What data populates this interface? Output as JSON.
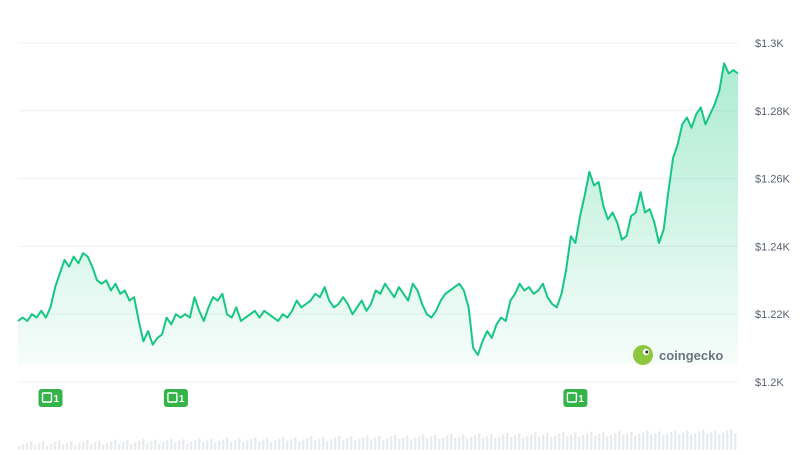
{
  "chart_data": {
    "type": "area",
    "ylim": [
      1200,
      1305
    ],
    "y_ticks": [
      {
        "value": 1300,
        "label": "$1.3K"
      },
      {
        "value": 1280,
        "label": "$1.28K"
      },
      {
        "value": 1260,
        "label": "$1.26K"
      },
      {
        "value": 1240,
        "label": "$1.24K"
      },
      {
        "value": 1220,
        "label": "$1.22K"
      },
      {
        "value": 1200,
        "label": "$1.2K"
      }
    ],
    "grid": true,
    "line_color": "#16c784",
    "fill_color": "#16c784",
    "badge_color": "#34b349",
    "series": [
      {
        "values": [
          1218,
          1219,
          1218,
          1220,
          1219,
          1221,
          1219,
          1222,
          1228,
          1232,
          1236,
          1234,
          1237,
          1235,
          1238,
          1237,
          1234,
          1230,
          1229,
          1230,
          1227,
          1229,
          1226,
          1227,
          1224,
          1225,
          1218,
          1212,
          1215,
          1211,
          1213,
          1214,
          1219,
          1217,
          1220,
          1219,
          1220,
          1219,
          1225,
          1221,
          1218,
          1222,
          1225,
          1224,
          1226,
          1220,
          1219,
          1222,
          1218,
          1219,
          1220,
          1221,
          1219,
          1221,
          1220,
          1219,
          1218,
          1220,
          1219,
          1221,
          1224,
          1222,
          1223,
          1224,
          1226,
          1225,
          1228,
          1224,
          1222,
          1223,
          1225,
          1223,
          1220,
          1222,
          1224,
          1221,
          1223,
          1227,
          1226,
          1229,
          1227,
          1225,
          1228,
          1226,
          1224,
          1229,
          1227,
          1223,
          1220,
          1219,
          1221,
          1224,
          1226,
          1227,
          1228,
          1229,
          1227,
          1222,
          1210,
          1208,
          1212,
          1215,
          1213,
          1217,
          1219,
          1218,
          1224,
          1226,
          1229,
          1227,
          1228,
          1226,
          1227,
          1229,
          1225,
          1223,
          1222,
          1226,
          1233,
          1243,
          1241,
          1249,
          1255,
          1262,
          1258,
          1259,
          1252,
          1248,
          1250,
          1247,
          1242,
          1243,
          1249,
          1250,
          1256,
          1250,
          1251,
          1247,
          1241,
          1245,
          1256,
          1266,
          1270,
          1276,
          1278,
          1275,
          1279,
          1281,
          1276,
          1279,
          1282,
          1286,
          1294,
          1291,
          1292,
          1291
        ],
        "marks": {
          "badge_label": "1",
          "badge_positions": [
            7,
            34,
            120
          ]
        }
      }
    ]
  },
  "watermark": {
    "text": "coingecko",
    "icon": "gecko-logo-icon"
  }
}
